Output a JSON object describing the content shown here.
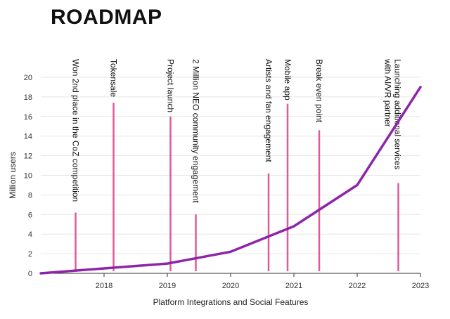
{
  "header": {
    "title": "ROADMAP"
  },
  "chart_data": {
    "type": "line",
    "title": "ROADMAP",
    "xlabel": "Platform Integrations and Social Features",
    "ylabel": "Million users",
    "xlim": [
      2017.0,
      2023.0
    ],
    "ylim": [
      0,
      20
    ],
    "x_ticks": [
      2018,
      2019,
      2020,
      2021,
      2022,
      2023
    ],
    "y_ticks": [
      0,
      2,
      4,
      6,
      8,
      10,
      12,
      14,
      16,
      18,
      20
    ],
    "grid": true,
    "series": [
      {
        "x": [
          2017.0,
          2018.0,
          2019.0,
          2020.0,
          2021.0,
          2022.0,
          2023.0
        ],
        "y": [
          0,
          0.5,
          1.0,
          2.2,
          4.8,
          9.0,
          19.0
        ]
      }
    ],
    "milestones": [
      {
        "label": "Won 2nd place in the CoZ competition",
        "x": 2017.55,
        "top": 6.2
      },
      {
        "label": "Tokensale",
        "x": 2018.15,
        "top": 17.4
      },
      {
        "label": "Project launch",
        "x": 2019.05,
        "top": 16.0
      },
      {
        "label": "2 Million NEO community engagement",
        "x": 2019.45,
        "top": 6.0
      },
      {
        "label": "Artists and fan engagement",
        "x": 2020.6,
        "top": 10.2
      },
      {
        "label": "Mobile app",
        "x": 2020.9,
        "top": 17.3
      },
      {
        "label": "Break even point",
        "x": 2021.4,
        "top": 14.6
      },
      {
        "label": "Launching  additional services",
        "label2": "with AI/VR partner",
        "x": 2022.65,
        "top": 9.2
      }
    ],
    "colors": {
      "line": "#8e24aa",
      "milestone": "#e05a9a",
      "grid": "#e6e6e6"
    }
  }
}
